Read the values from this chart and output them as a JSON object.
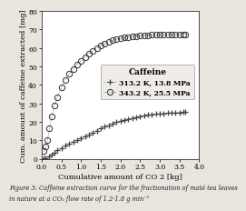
{
  "title": "Caffeine",
  "xlabel": "Cumulative amount of CO 2 [kg]",
  "ylabel": "Cum. amount of caffeine extracted [mg]",
  "xlim": [
    0,
    4.0
  ],
  "ylim": [
    0,
    80
  ],
  "xticks": [
    0.0,
    0.5,
    1.0,
    1.5,
    2.0,
    2.5,
    3.0,
    3.5,
    4.0
  ],
  "yticks": [
    0,
    10,
    20,
    30,
    40,
    50,
    60,
    70,
    80
  ],
  "series1_label": "313.2 K, 13.8 MPa",
  "series2_label": "343.2 K, 25.5 MPa",
  "series1_x": [
    0.05,
    0.1,
    0.18,
    0.25,
    0.32,
    0.4,
    0.5,
    0.6,
    0.7,
    0.8,
    0.9,
    1.0,
    1.1,
    1.2,
    1.3,
    1.4,
    1.5,
    1.6,
    1.7,
    1.8,
    1.9,
    2.0,
    2.1,
    2.2,
    2.3,
    2.4,
    2.5,
    2.6,
    2.7,
    2.8,
    2.9,
    3.0,
    3.1,
    3.2,
    3.3,
    3.4,
    3.5,
    3.6,
    3.65
  ],
  "series1_y": [
    0.2,
    0.5,
    1.2,
    2.2,
    3.2,
    4.5,
    5.8,
    7.0,
    8.2,
    9.3,
    10.3,
    11.3,
    12.3,
    13.3,
    14.3,
    15.3,
    16.3,
    17.3,
    18.2,
    19.0,
    19.8,
    20.5,
    21.1,
    21.6,
    22.1,
    22.5,
    23.0,
    23.4,
    23.7,
    24.0,
    24.2,
    24.4,
    24.6,
    24.7,
    24.9,
    25.0,
    25.1,
    25.3,
    25.4
  ],
  "series2_x": [
    0.05,
    0.1,
    0.15,
    0.2,
    0.26,
    0.33,
    0.4,
    0.5,
    0.6,
    0.7,
    0.8,
    0.9,
    1.0,
    1.1,
    1.2,
    1.3,
    1.4,
    1.5,
    1.6,
    1.7,
    1.8,
    1.9,
    2.0,
    2.1,
    2.2,
    2.3,
    2.4,
    2.5,
    2.6,
    2.7,
    2.8,
    2.9,
    3.0,
    3.1,
    3.2,
    3.3,
    3.4,
    3.5,
    3.6,
    3.65
  ],
  "series2_y": [
    4.0,
    6.5,
    10.0,
    16.5,
    23.0,
    29.0,
    33.5,
    38.5,
    42.5,
    46.0,
    48.5,
    51.0,
    53.0,
    55.0,
    57.0,
    58.5,
    60.0,
    61.5,
    62.5,
    63.5,
    64.2,
    64.8,
    65.3,
    65.7,
    66.0,
    66.3,
    66.5,
    66.7,
    66.9,
    67.0,
    67.1,
    67.2,
    67.3,
    67.35,
    67.4,
    67.45,
    67.5,
    67.5,
    67.5,
    67.5
  ],
  "figcaption_line1": "Figure 3: Caffeine extraction curve for the fractionation of maté tea leaves",
  "figcaption_line2": "in nature at a CO₂ flow rate of 1.2-1.8 g min⁻¹",
  "background_color": "#e8e4de",
  "plot_bg_color": "#ffffff",
  "marker1": "+",
  "marker2": "o",
  "marker_color": "#444444",
  "line_style": ":",
  "legend_title_fontsize": 6.5,
  "legend_fontsize": 5.5,
  "axis_label_fontsize": 6.0,
  "tick_fontsize": 5.5,
  "caption_fontsize": 4.8
}
